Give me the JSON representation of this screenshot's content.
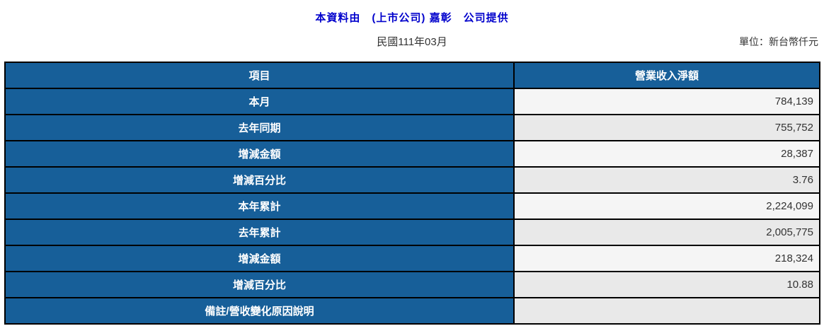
{
  "page": {
    "title": "本資料由　(上市公司) 嘉彰　公司提供",
    "period": "民國111年03月",
    "unit_label": "單位：新台幣仟元"
  },
  "table": {
    "columns": [
      "項目",
      "營業收入淨額"
    ],
    "rows": [
      {
        "label": "本月",
        "value": "784,139"
      },
      {
        "label": "去年同期",
        "value": "755,752"
      },
      {
        "label": "增減金額",
        "value": "28,387"
      },
      {
        "label": "增減百分比",
        "value": "3.76"
      },
      {
        "label": "本年累計",
        "value": "2,224,099"
      },
      {
        "label": "去年累計",
        "value": "2,005,775"
      },
      {
        "label": "增減金額",
        "value": "218,324"
      },
      {
        "label": "增減百分比",
        "value": "10.88"
      },
      {
        "label": "備註/營收變化原因說明",
        "value": ""
      }
    ]
  },
  "colors": {
    "header_bg": "#175f99",
    "title_text": "#0000cc",
    "row_light": "#f5f5f5",
    "row_shaded": "#e9e9e9",
    "border_color": "#000000",
    "value_text": "#333333"
  }
}
